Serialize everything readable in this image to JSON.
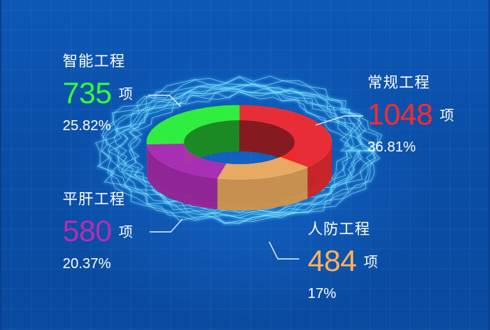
{
  "colors": {
    "常规工程": "#ff2a2a",
    "智能工程": "#33ff33",
    "平肝工程": "#b82bb3",
    "人防工程": "#ffb25a"
  },
  "chart_data": {
    "type": "pie",
    "style": "3d-donut",
    "categories": [
      "常规工程",
      "人防工程",
      "平肝工程",
      "智能工程"
    ],
    "values": [
      1048,
      484,
      580,
      735
    ],
    "percents": [
      "36.81%",
      "17%",
      "20.37%",
      "25.82%"
    ],
    "unit": "项",
    "labels": {
      "changgui": {
        "name": "常规工程",
        "value": "1048",
        "unit": "项",
        "percent": "36.81%"
      },
      "renfang": {
        "name": "人防工程",
        "value": "484",
        "unit": "项",
        "percent": "17%"
      },
      "pinggan": {
        "name": "平肝工程",
        "value": "580",
        "unit": "项",
        "percent": "20.37%"
      },
      "zhineng": {
        "name": "智能工程",
        "value": "735",
        "unit": "项",
        "percent": "25.82%"
      }
    }
  }
}
